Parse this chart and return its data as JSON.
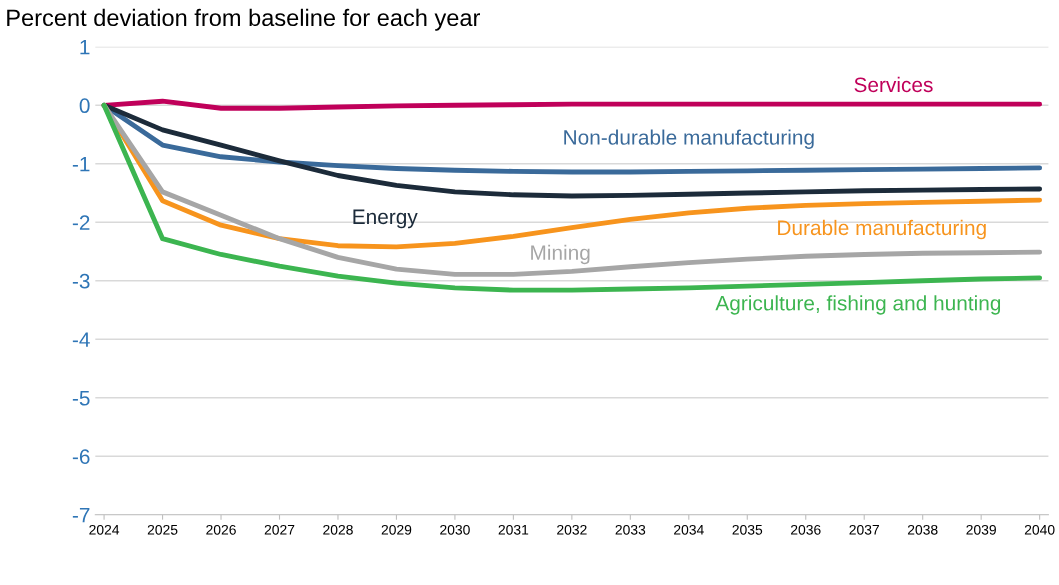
{
  "chart_data": {
    "type": "line",
    "title": "Percent deviation from baseline for each year",
    "categories": [
      "2024",
      "2025",
      "2026",
      "2027",
      "2028",
      "2029",
      "2030",
      "2031",
      "2032",
      "2033",
      "2034",
      "2035",
      "2036",
      "2037",
      "2038",
      "2039",
      "2040"
    ],
    "series": [
      {
        "name": "Services",
        "color": "#c0005a",
        "values": [
          0,
          0.07,
          -0.05,
          -0.05,
          -0.03,
          -0.01,
          0,
          0.01,
          0.02,
          0.02,
          0.02,
          0.02,
          0.02,
          0.02,
          0.02,
          0.02,
          0.02
        ]
      },
      {
        "name": "Non-durable manufacturing",
        "color": "#3a6a9a",
        "values": [
          0,
          -0.68,
          -0.88,
          -0.97,
          -1.03,
          -1.08,
          -1.11,
          -1.13,
          -1.14,
          -1.14,
          -1.13,
          -1.12,
          -1.11,
          -1.1,
          -1.09,
          -1.08,
          -1.07
        ]
      },
      {
        "name": "Energy",
        "color": "#1c2b3a",
        "values": [
          0,
          -0.42,
          -0.68,
          -0.95,
          -1.2,
          -1.37,
          -1.48,
          -1.53,
          -1.55,
          -1.54,
          -1.52,
          -1.5,
          -1.48,
          -1.46,
          -1.45,
          -1.44,
          -1.43
        ]
      },
      {
        "name": "Durable manufacturing",
        "color": "#f7941d",
        "values": [
          0,
          -1.63,
          -2.05,
          -2.28,
          -2.4,
          -2.42,
          -2.36,
          -2.24,
          -2.09,
          -1.95,
          -1.84,
          -1.76,
          -1.71,
          -1.68,
          -1.66,
          -1.64,
          -1.62
        ]
      },
      {
        "name": "Mining",
        "color": "#a6a6a6",
        "values": [
          0,
          -1.48,
          -1.88,
          -2.28,
          -2.6,
          -2.8,
          -2.89,
          -2.89,
          -2.84,
          -2.76,
          -2.69,
          -2.63,
          -2.58,
          -2.55,
          -2.53,
          -2.52,
          -2.51
        ]
      },
      {
        "name": "Agriculture, fishing and hunting",
        "color": "#3cb550",
        "values": [
          0,
          -2.28,
          -2.55,
          -2.75,
          -2.92,
          -3.04,
          -3.12,
          -3.16,
          -3.16,
          -3.14,
          -3.12,
          -3.09,
          -3.06,
          -3.03,
          -3.0,
          -2.97,
          -2.95
        ]
      }
    ],
    "ylim": [
      -7,
      1
    ],
    "yticks": [
      -7,
      -6,
      -5,
      -4,
      -3,
      -2,
      -1,
      0,
      1
    ],
    "grid": "y",
    "legend": false,
    "marker": "none",
    "line_style": "solid"
  }
}
